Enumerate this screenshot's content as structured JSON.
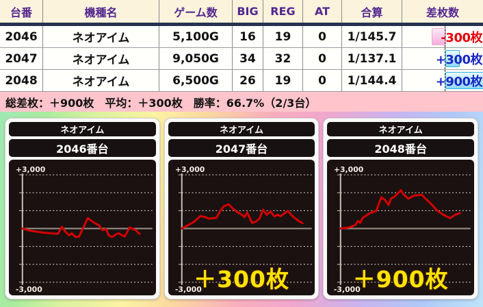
{
  "table": {
    "columns": [
      "台番",
      "機種名",
      "ゲーム数",
      "BIG",
      "REG",
      "AT",
      "合算",
      "差枚数"
    ],
    "rows": [
      {
        "dai": "2046",
        "model": "ネオアイム",
        "games": "5,100G",
        "big": "16",
        "reg": "19",
        "at": "0",
        "gassan": "1/145.7",
        "diff": "-300枚",
        "diff_value": -300
      },
      {
        "dai": "2047",
        "model": "ネオアイム",
        "games": "9,050G",
        "big": "34",
        "reg": "32",
        "at": "0",
        "gassan": "1/137.1",
        "diff": "+300枚",
        "diff_value": 300
      },
      {
        "dai": "2048",
        "model": "ネオアイム",
        "games": "6,500G",
        "big": "26",
        "reg": "19",
        "at": "0",
        "gassan": "1/144.4",
        "diff": "+900枚",
        "diff_value": 900
      }
    ],
    "summary": "総差枚：＋900枚　平均：＋300枚　勝率：66.7%（2/3台）"
  },
  "charts": [
    {
      "model": "ネオアイム",
      "machine": "2046番台",
      "overlay": "",
      "y_top": "+3,000",
      "y_bottom": "-3,000"
    },
    {
      "model": "ネオアイム",
      "machine": "2047番台",
      "overlay": "＋300枚",
      "y_top": "+3,000",
      "y_bottom": "-3,000"
    },
    {
      "model": "ネオアイム",
      "machine": "2048番台",
      "overlay": "＋900枚",
      "y_top": "+3,000",
      "y_bottom": "-3,000"
    }
  ],
  "chart_data": {
    "type": "line",
    "ylabel": "差枚数",
    "ylim": [
      -3000,
      3000
    ],
    "gridline_step": 1000,
    "grid": true,
    "line_color": "#D40000",
    "series": [
      {
        "name": "2046番台",
        "final_value": -300,
        "x_frac": [
          0,
          0.07,
          0.17,
          0.26,
          0.29,
          0.32,
          0.35,
          0.38,
          0.4,
          0.43,
          0.46,
          0.53,
          0.57,
          0.62,
          0.65,
          0.68,
          0.7,
          0.73,
          0.76,
          0.78,
          0.81,
          0.83,
          0.87,
          0.92,
          0.95
        ],
        "values": [
          0,
          -130,
          -230,
          -280,
          -280,
          100,
          -190,
          -380,
          -260,
          -470,
          -450,
          580,
          380,
          190,
          -90,
          -40,
          -380,
          -470,
          -320,
          -260,
          -380,
          -450,
          60,
          -90,
          -300
        ]
      },
      {
        "name": "2047番台",
        "final_value": 300,
        "x_frac": [
          0,
          0.05,
          0.1,
          0.15,
          0.19,
          0.22,
          0.25,
          0.28,
          0.31,
          0.34,
          0.38,
          0.41,
          0.44,
          0.48,
          0.51,
          0.53,
          0.57,
          0.6,
          0.63,
          0.66,
          0.69,
          0.72,
          0.75,
          0.78,
          0.8,
          0.86,
          0.9,
          0.95,
          0.98
        ],
        "values": [
          0,
          190,
          380,
          700,
          640,
          550,
          580,
          600,
          960,
          1240,
          1345,
          1150,
          960,
          805,
          640,
          895,
          320,
          380,
          550,
          1050,
          770,
          960,
          680,
          770,
          680,
          985,
          680,
          420,
          300
        ]
      },
      {
        "name": "2048番台",
        "final_value": 900,
        "x_frac": [
          0,
          0.05,
          0.08,
          0.12,
          0.14,
          0.16,
          0.18,
          0.2,
          0.23,
          0.27,
          0.29,
          0.33,
          0.36,
          0.39,
          0.41,
          0.44,
          0.49,
          0.51,
          0.55,
          0.59,
          0.66,
          0.69,
          0.74,
          0.78,
          0.82,
          0.86,
          0.89,
          0.93,
          0.97
        ],
        "values": [
          0,
          40,
          90,
          190,
          420,
          320,
          600,
          680,
          830,
          935,
          985,
          1750,
          1600,
          1320,
          1665,
          1790,
          2140,
          1920,
          1665,
          1830,
          1880,
          1665,
          1345,
          1025,
          830,
          680,
          575,
          770,
          860
        ]
      }
    ]
  },
  "colors": {
    "header_bg": "#FCF3DC",
    "header_text": "#52278F",
    "navy_band": "#26334F",
    "summary_bg": "#FFC4CC",
    "chart_bg": "#1B1111",
    "line_red": "#D40000",
    "overlay_yellow": "#FFE400",
    "diff_neg_text": "#E3000A",
    "diff_pos_text": "#1827C4",
    "diff_neg_bar": "#F7AEDC",
    "diff_pos_bar": "#8FD9F5"
  }
}
